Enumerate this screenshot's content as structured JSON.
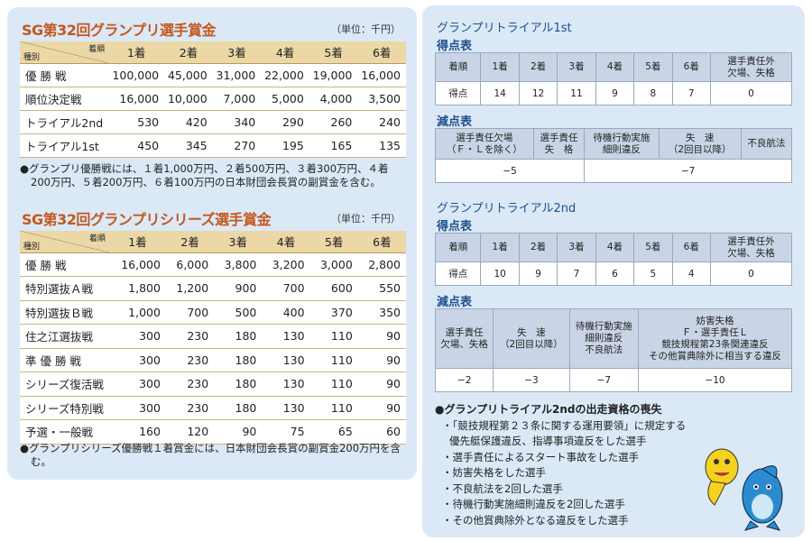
{
  "prize_tables": [
    {
      "title": "SG第32回グランプリ選手賞金",
      "unit": "（単位：千円）",
      "corner_top": "着順",
      "corner_bottom": "種別",
      "columns": [
        "1着",
        "2着",
        "3着",
        "4着",
        "5着",
        "6着"
      ],
      "rows": [
        {
          "label": "優 勝 戦",
          "values": [
            "100,000",
            "45,000",
            "31,000",
            "22,000",
            "19,000",
            "16,000"
          ]
        },
        {
          "label": "順位決定戦",
          "values": [
            "16,000",
            "10,000",
            "7,000",
            "5,000",
            "4,000",
            "3,500"
          ]
        },
        {
          "label": "トライアル2nd",
          "values": [
            "530",
            "420",
            "340",
            "290",
            "260",
            "240"
          ]
        },
        {
          "label": "トライアル1st",
          "values": [
            "450",
            "345",
            "270",
            "195",
            "165",
            "135"
          ]
        }
      ],
      "note": "●グランプリ優勝戦には、１着1,000万円、２着500万円、３着300万円、４着200万円、５着200万円、６着100万円の日本財団会長賞の副賞金を含む。"
    },
    {
      "title": "SG第32回グランプリシリーズ選手賞金",
      "unit": "（単位：千円）",
      "corner_top": "着順",
      "corner_bottom": "種別",
      "columns": [
        "1着",
        "2着",
        "3着",
        "4着",
        "5着",
        "6着"
      ],
      "rows": [
        {
          "label": "優 勝 戦",
          "values": [
            "16,000",
            "6,000",
            "3,800",
            "3,200",
            "3,000",
            "2,800"
          ]
        },
        {
          "label": "特別選抜Ａ戦",
          "values": [
            "1,800",
            "1,200",
            "900",
            "700",
            "600",
            "550"
          ]
        },
        {
          "label": "特別選抜Ｂ戦",
          "values": [
            "1,000",
            "700",
            "500",
            "400",
            "370",
            "350"
          ]
        },
        {
          "label": "住之江選抜戦",
          "values": [
            "300",
            "230",
            "180",
            "130",
            "110",
            "90"
          ]
        },
        {
          "label": "準 優 勝 戦",
          "values": [
            "300",
            "230",
            "180",
            "130",
            "110",
            "90"
          ]
        },
        {
          "label": "シリーズ復活戦",
          "values": [
            "300",
            "230",
            "180",
            "130",
            "110",
            "90"
          ]
        },
        {
          "label": "シリーズ特別戦",
          "values": [
            "300",
            "230",
            "180",
            "130",
            "110",
            "90"
          ]
        },
        {
          "label": "予選・一般戦",
          "values": [
            "160",
            "120",
            "90",
            "75",
            "65",
            "60"
          ]
        }
      ],
      "note": "●グランプリシリーズ優勝戦１着賞金には、日本財団会長賞の副賞金200万円を含む。"
    }
  ],
  "trials": [
    {
      "title": "グランプリトライアル1st",
      "score_title": "得点表",
      "score_header": [
        "着順",
        "1着",
        "2着",
        "3着",
        "4着",
        "5着",
        "6着",
        "選手責任外\n欠場、失格"
      ],
      "score_row": [
        "得点",
        "14",
        "12",
        "11",
        "9",
        "8",
        "7",
        "0"
      ],
      "penalty_title": "減点表",
      "penalty_header": [
        "選手責任欠場\n（Ｆ・Ｌを除く）",
        "選手責任\n失　格",
        "待機行動実施\n細則違反",
        "失　速\n（2回目以降）",
        "不良航法"
      ],
      "penalty_values": [
        "−5",
        "−7"
      ]
    },
    {
      "title": "グランプリトライアル2nd",
      "score_title": "得点表",
      "score_header": [
        "着順",
        "1着",
        "2着",
        "3着",
        "4着",
        "5着",
        "6着",
        "選手責任外\n欠場、失格"
      ],
      "score_row": [
        "得点",
        "10",
        "9",
        "7",
        "6",
        "5",
        "4",
        "0"
      ],
      "penalty_title": "減点表",
      "penalty_header": [
        "選手責任\n欠場、失格",
        "失　速\n（2回目以降）",
        "待機行動実施\n細則違反\n不良航法",
        "妨害失格\nＦ・選手責任Ｌ\n競技規程第23条関連違反\nその他賞典除外に相当する違反"
      ],
      "penalty_values": [
        "−2",
        "−3",
        "−7",
        "−10"
      ]
    }
  ],
  "disqualification": {
    "title": "●グランプリトライアル2ndの出走資格の喪失",
    "items": [
      "・「競技規程第２３条に関する運用要領」に規定する\n優先艇保護違反、指導事項違反をした選手",
      "・選手責任によるスタート事故をした選手",
      "・妨害失格をした選手",
      "・不良航法を2回した選手",
      "・待機行動実施細則違反を2回した選手",
      "・その他賞典除外となる違反をした選手"
    ]
  }
}
